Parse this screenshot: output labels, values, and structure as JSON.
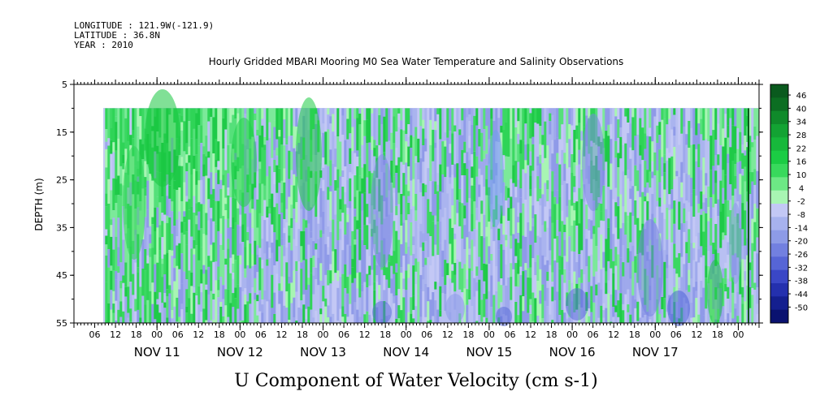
{
  "header": {
    "longitude": "LONGITUDE : 121.9W(-121.9)",
    "latitude": "LATITUDE : 36.8N",
    "year": "YEAR : 2010"
  },
  "chart_data": {
    "type": "heatmap",
    "title": "Hourly Gridded MBARI Mooring M0 Sea Water Temperature and Salinity Observations",
    "xlabel": "U Component of Water Velocity (cm s-1)",
    "ylabel": "DEPTH (m)",
    "ylim": [
      5,
      55
    ],
    "y_reversed": true,
    "y_ticks": [
      5,
      15,
      25,
      35,
      45,
      55
    ],
    "x_start": "NOV 10 12:00",
    "x_end": "NOV 17 18:00",
    "x_hour_ticks": [
      "06",
      "12",
      "18",
      "00",
      "06",
      "12",
      "18",
      "00",
      "06",
      "12",
      "18",
      "00",
      "06",
      "12",
      "18",
      "00",
      "06",
      "12",
      "18",
      "00",
      "06",
      "12",
      "18",
      "00",
      "06",
      "12",
      "18",
      "00",
      "06",
      "12",
      "18",
      "00"
    ],
    "x_day_labels": [
      "NOV 11",
      "NOV 12",
      "NOV 13",
      "NOV 14",
      "NOV 15",
      "NOV 16",
      "NOV 17"
    ],
    "data_start": "NOV 10 21:00",
    "data_end": "NOV 17 18:00",
    "data_depth_range": [
      10,
      55
    ],
    "colorbar": {
      "labels": [
        "46",
        "40",
        "34",
        "28",
        "22",
        "16",
        "10",
        "4",
        "-2",
        "-8",
        "-14",
        "-20",
        "-26",
        "-32",
        "-38",
        "-44",
        "-50"
      ],
      "colors": [
        "#0a5a1e",
        "#0c6e22",
        "#0f8a2a",
        "#13a333",
        "#17b83b",
        "#1bcc44",
        "#38d95c",
        "#6de885",
        "#a8f5b3",
        "#c3c8f5",
        "#a7b2ee",
        "#8d9be7",
        "#7280e0",
        "#5665d6",
        "#3a47c6",
        "#2430ae",
        "#141f8f",
        "#0a1270"
      ]
    },
    "grid": false
  }
}
